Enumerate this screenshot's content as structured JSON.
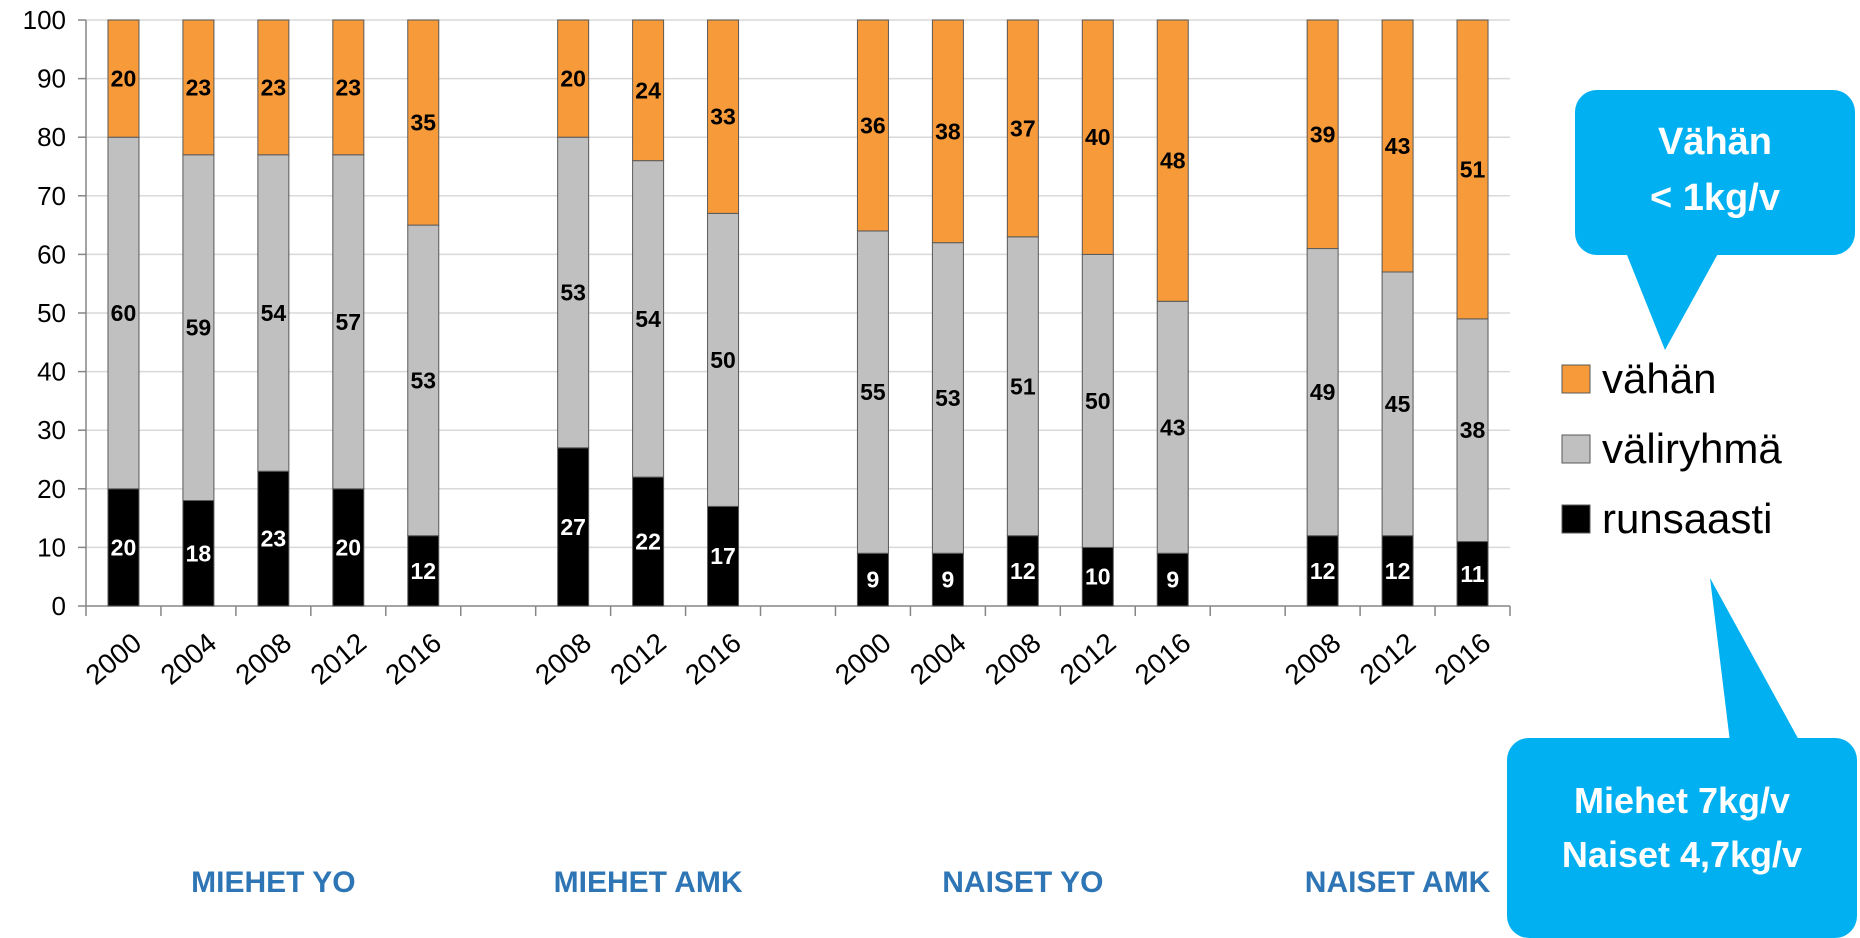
{
  "chart_data": {
    "type": "bar",
    "stacked": true,
    "ylim": [
      0,
      100
    ],
    "yticks": [
      0,
      10,
      20,
      30,
      40,
      50,
      60,
      70,
      80,
      90,
      100
    ],
    "grid": true,
    "legend_position": "right",
    "groups": [
      {
        "label": "MIEHET YO",
        "years": [
          "2000",
          "2004",
          "2008",
          "2012",
          "2016"
        ]
      },
      {
        "label": "MIEHET AMK",
        "years": [
          "2008",
          "2012",
          "2016"
        ]
      },
      {
        "label": "NAISET YO",
        "years": [
          "2000",
          "2004",
          "2008",
          "2012",
          "2016"
        ]
      },
      {
        "label": "NAISET AMK",
        "years": [
          "2008",
          "2012",
          "2016"
        ]
      }
    ],
    "series": [
      {
        "name": "runsaasti",
        "color": "#000000",
        "values": [
          20,
          18,
          23,
          20,
          12,
          27,
          22,
          17,
          9,
          9,
          12,
          10,
          9,
          12,
          12,
          11
        ]
      },
      {
        "name": "väliryhmä",
        "color": "#c0c0c0",
        "values": [
          60,
          59,
          54,
          57,
          53,
          53,
          54,
          50,
          55,
          53,
          51,
          50,
          43,
          49,
          45,
          38
        ]
      },
      {
        "name": "vähän",
        "color": "#f79a3a",
        "values": [
          20,
          23,
          23,
          23,
          35,
          20,
          24,
          33,
          36,
          38,
          37,
          40,
          48,
          39,
          43,
          51
        ]
      }
    ],
    "legend_order": [
      "vähän",
      "väliryhmä",
      "runsaasti"
    ]
  },
  "callouts": {
    "top": {
      "line1": "Vähän",
      "line2": "< 1kg/v"
    },
    "bottom": {
      "line1": "Miehet 7kg/v",
      "line2": "Naiset 4,7kg/v"
    }
  },
  "colors": {
    "callout": "#00b0f0",
    "group_label": "#2e75b6"
  }
}
